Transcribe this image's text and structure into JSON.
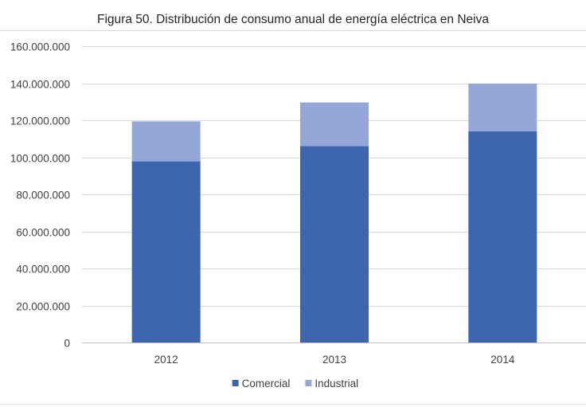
{
  "chart_data": {
    "type": "bar",
    "stacked": true,
    "title": "Figura 50. Distribución de consumo anual de energía eléctrica en Neiva",
    "xlabel": "",
    "ylabel": "",
    "categories": [
      "2012",
      "2013",
      "2014"
    ],
    "series": [
      {
        "name": "Comercial",
        "color": "#3d66ae",
        "values": [
          97800000,
          106000000,
          114000000
        ]
      },
      {
        "name": "Industrial",
        "color": "#94a7d6",
        "values": [
          21600000,
          23600000,
          25800000
        ]
      }
    ],
    "ylim": [
      0,
      160000000
    ],
    "yticks": [
      0,
      20000000,
      40000000,
      60000000,
      80000000,
      100000000,
      120000000,
      140000000,
      160000000
    ],
    "ytick_labels": [
      "0",
      "20.000.000",
      "40.000.000",
      "60.000.000",
      "80.000.000",
      "100.000.000",
      "120.000.000",
      "140.000.000",
      "160.000.000"
    ],
    "grid": true,
    "legend_position": "bottom",
    "colors": {
      "gridline": "#d9d9d9",
      "axis": "#bfbfbf",
      "text": "#404040",
      "title": "#262626"
    }
  }
}
